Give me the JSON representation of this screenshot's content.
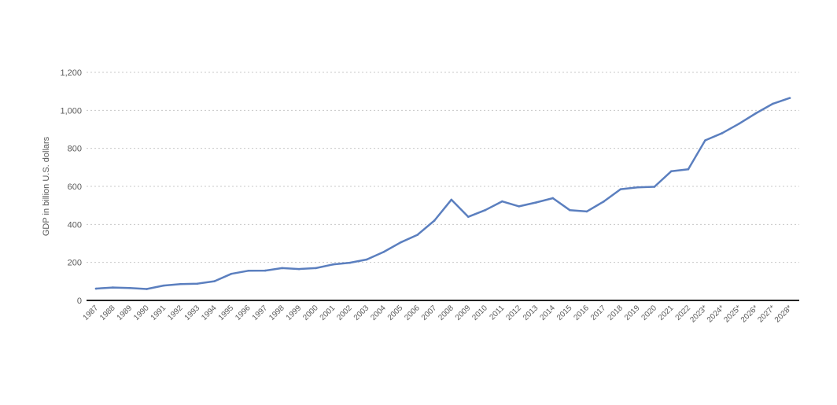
{
  "chart_data": {
    "type": "line",
    "title": "",
    "xlabel": "",
    "ylabel": "GDP in billion U.S. dollars",
    "ylim": [
      0,
      1200
    ],
    "yticks": [
      0,
      200,
      400,
      600,
      800,
      1000,
      1200
    ],
    "ytick_labels": [
      "0",
      "200",
      "400",
      "600",
      "800",
      "1,000",
      "1,200"
    ],
    "grid": "horizontal-dotted",
    "categories": [
      "1987",
      "1988",
      "1989",
      "1990",
      "1991",
      "1992",
      "1993",
      "1994",
      "1995",
      "1996",
      "1997",
      "1998",
      "1999",
      "2000",
      "2001",
      "2002",
      "2003",
      "2004",
      "2005",
      "2006",
      "2007",
      "2008",
      "2009",
      "2010",
      "2011",
      "2012",
      "2013",
      "2014",
      "2015",
      "2016",
      "2017",
      "2018",
      "2019",
      "2020",
      "2021",
      "2022",
      "2023*",
      "2024*",
      "2025*",
      "2026*",
      "2027*",
      "2028*"
    ],
    "series": [
      {
        "values": [
          62,
          68,
          65,
          60,
          78,
          86,
          88,
          101,
          140,
          156,
          157,
          170,
          165,
          170,
          189,
          198,
          215,
          255,
          305,
          345,
          420,
          530,
          440,
          475,
          521,
          495,
          515,
          538,
          475,
          468,
          520,
          585,
          595,
          598,
          680,
          690,
          842,
          880,
          930,
          985,
          1035,
          1065
        ]
      }
    ],
    "colors": {
      "line": "#5b7fbf",
      "grid": "#c8c8c8",
      "axis": "#222222",
      "text": "#5a5a5a"
    }
  }
}
